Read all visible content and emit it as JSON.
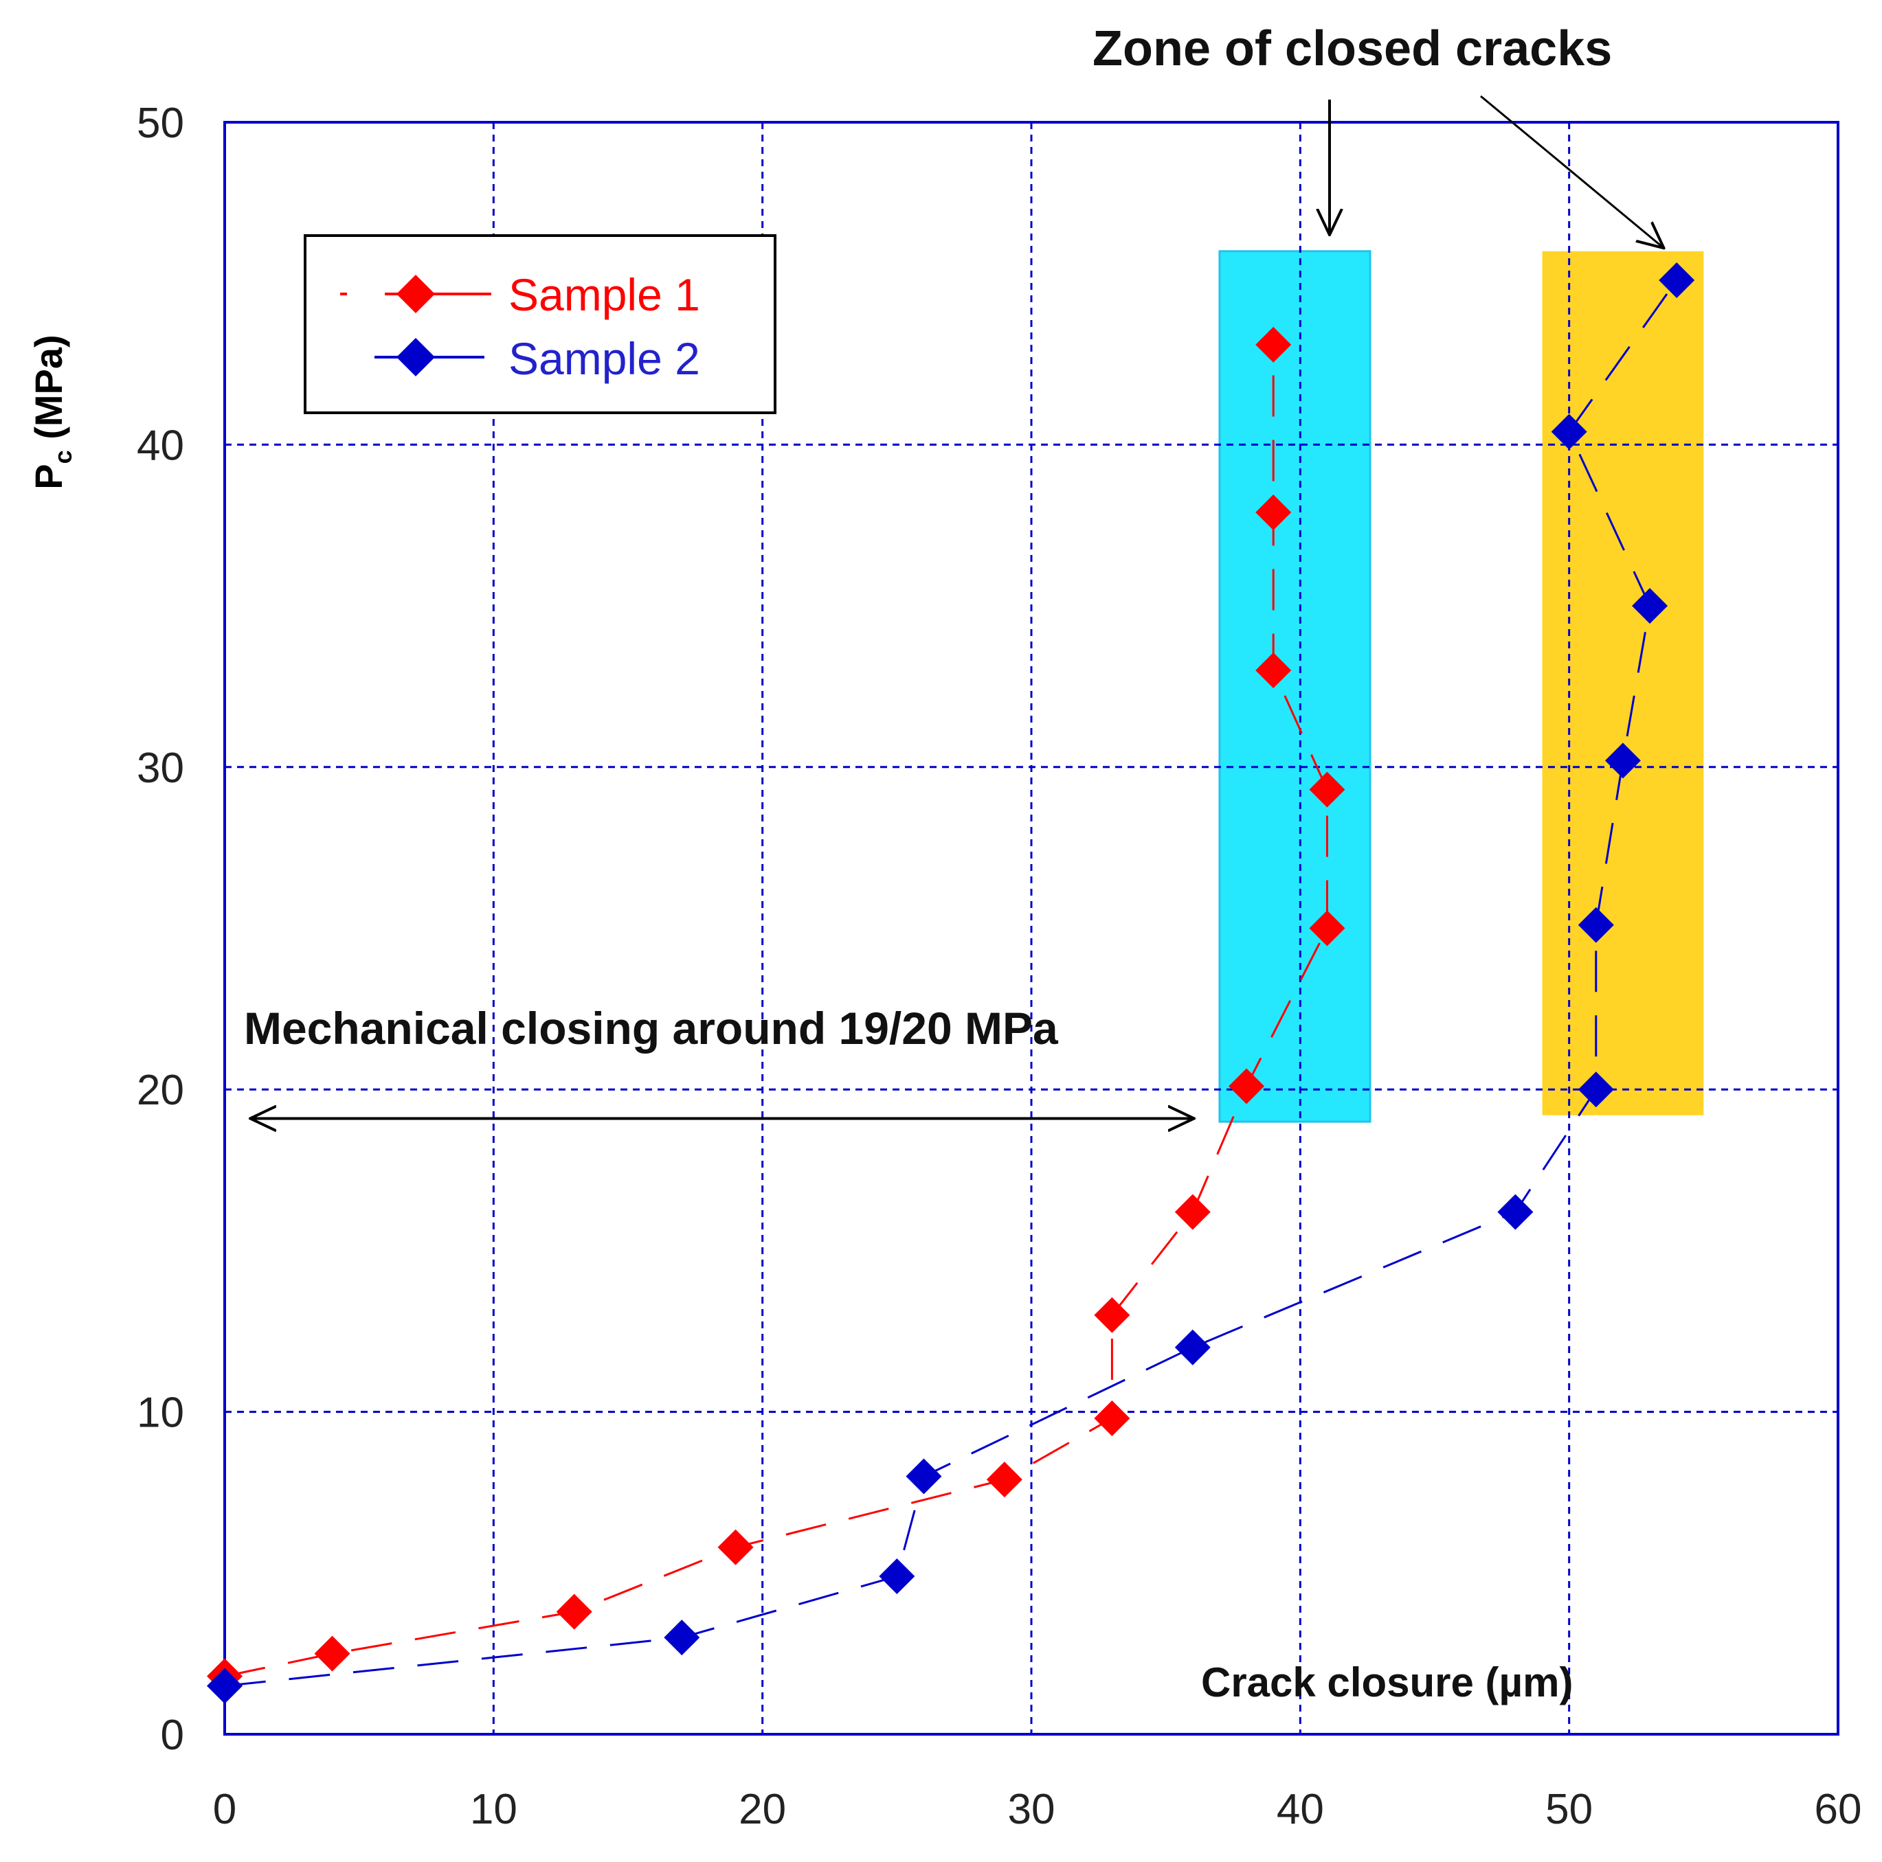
{
  "chart_data": {
    "type": "line",
    "x": {
      "label": "Crack closure (µm)",
      "range": [
        0,
        60
      ],
      "ticks": [
        "0",
        "10",
        "20",
        "30",
        "40",
        "50",
        "60"
      ]
    },
    "y": {
      "label_main": "P",
      "label_sub": "c",
      "label_unit": "(MPa)",
      "range": [
        0,
        50
      ],
      "ticks": [
        "0",
        "10",
        "20",
        "30",
        "40",
        "50"
      ]
    },
    "grid": true,
    "legend": {
      "position": "top-left",
      "items": [
        {
          "label": "Sample 1",
          "color": "#ff0000"
        },
        {
          "label": "Sample 2",
          "color": "#0000cc"
        }
      ]
    },
    "series": [
      {
        "name": "Sample 1",
        "color": "#ff0000",
        "points": [
          [
            0,
            1.8
          ],
          [
            4,
            2.5
          ],
          [
            13,
            3.8
          ],
          [
            19,
            5.8
          ],
          [
            29,
            7.9
          ],
          [
            33,
            9.8
          ],
          [
            33,
            13
          ],
          [
            36,
            16.2
          ],
          [
            38,
            20.1
          ],
          [
            41,
            25
          ],
          [
            41,
            29.3
          ],
          [
            39,
            33
          ],
          [
            39,
            37.9
          ],
          [
            39,
            43.1
          ]
        ]
      },
      {
        "name": "Sample 2",
        "color": "#0000cc",
        "points": [
          [
            0,
            1.5
          ],
          [
            17,
            3
          ],
          [
            25,
            4.9
          ],
          [
            26,
            8
          ],
          [
            36,
            12
          ],
          [
            48,
            16.2
          ],
          [
            51,
            20
          ],
          [
            51,
            25.1
          ],
          [
            52,
            30.2
          ],
          [
            53,
            35
          ],
          [
            50,
            40.4
          ],
          [
            54,
            45.1
          ]
        ]
      }
    ],
    "zones": [
      {
        "x": [
          37,
          42.6
        ],
        "y": [
          19,
          46
        ],
        "color": "#00e5ff"
      },
      {
        "x": [
          49,
          55
        ],
        "y": [
          19.2,
          46
        ],
        "color": "#ffcc00"
      }
    ],
    "annotations": {
      "zone_title": "Zone of closed cracks",
      "mechanical": "Mechanical closing around 19/20 MPa",
      "mechanical_arrow": {
        "x_from": 1,
        "x_to": 36,
        "y": 19.1
      }
    }
  }
}
